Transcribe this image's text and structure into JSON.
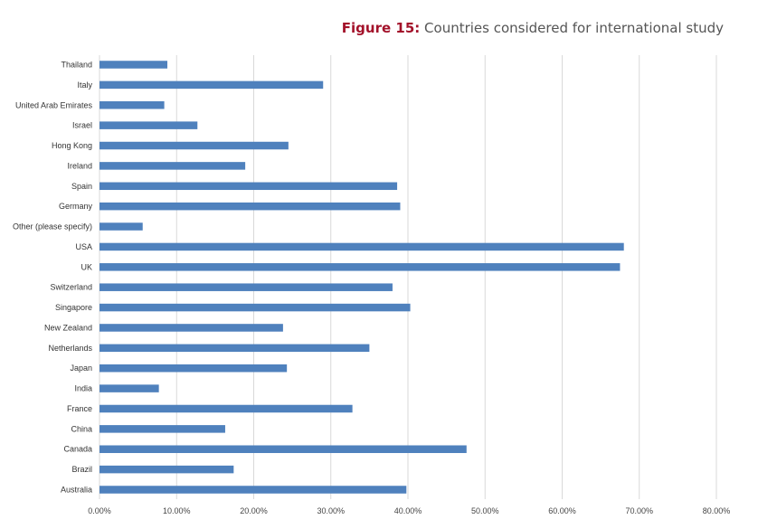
{
  "figure": {
    "label": "Figure 15:",
    "title": "Countries considered for international study"
  },
  "chart_data": {
    "type": "bar",
    "orientation": "horizontal",
    "title": "Figure 15: Countries considered for international study",
    "xlabel": "",
    "ylabel": "",
    "xlim": [
      0,
      80
    ],
    "tick_labels": [
      "0.00%",
      "10.00%",
      "20.00%",
      "30.00%",
      "40.00%",
      "50.00%",
      "60.00%",
      "70.00%",
      "80.00%"
    ],
    "grid": true,
    "legend": "none",
    "bar_color": "#4f81bd",
    "categories": [
      "Thailand",
      "Italy",
      "United Arab Emirates",
      "Israel",
      "Hong Kong",
      "Ireland",
      "Spain",
      "Germany",
      "Other (please specify)",
      "USA",
      "UK",
      "Switzerland",
      "Singapore",
      "New Zealand",
      "Netherlands",
      "Japan",
      "India",
      "France",
      "China",
      "Canada",
      "Brazil",
      "Australia"
    ],
    "values": [
      8.8,
      29.0,
      8.4,
      12.7,
      24.5,
      18.9,
      38.6,
      39.0,
      5.6,
      68.0,
      67.5,
      38.0,
      40.3,
      23.8,
      35.0,
      24.3,
      7.7,
      32.8,
      16.3,
      47.6,
      17.4,
      39.8
    ]
  }
}
